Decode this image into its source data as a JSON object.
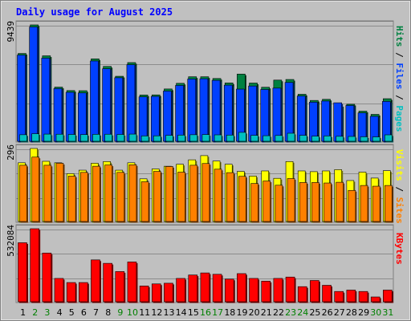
{
  "chart_data": [
    {
      "type": "bar",
      "title": "Daily usage for August 2025",
      "categories": [
        "1",
        "2",
        "3",
        "4",
        "5",
        "6",
        "7",
        "8",
        "9",
        "10",
        "11",
        "12",
        "13",
        "14",
        "15",
        "16",
        "17",
        "18",
        "19",
        "20",
        "21",
        "22",
        "23",
        "24",
        "25",
        "26",
        "27",
        "28",
        "29",
        "30",
        "31"
      ],
      "weekend_days": [
        "2",
        "3",
        "9",
        "10",
        "16",
        "17",
        "23",
        "24",
        "30",
        "31"
      ],
      "panels": [
        {
          "id": "top",
          "axis_label": "9439",
          "ymax": 9439,
          "legend": [
            "Pages",
            "Files",
            "Hits"
          ],
          "legend_colors": [
            "#00c0c0",
            "#0040ff",
            "#008040"
          ],
          "series": [
            {
              "name": "Hits",
              "color": "#008040",
              "values": [
                7120,
                9439,
                6930,
                4390,
                4110,
                4100,
                6680,
                6070,
                5270,
                6380,
                3750,
                3760,
                4240,
                4700,
                5230,
                5230,
                5090,
                4730,
                5450,
                4720,
                4380,
                4960,
                5010,
                3810,
                3310,
                3400,
                2900,
                3000,
                2440,
                2180,
                3450
              ]
            },
            {
              "name": "Files",
              "color": "#0040ff",
              "values": [
                6990,
                9270,
                6740,
                4270,
                3970,
                3920,
                6510,
                5880,
                5150,
                6210,
                3600,
                3640,
                4070,
                4530,
                5050,
                5070,
                4940,
                4550,
                4230,
                4480,
                4200,
                4310,
                4770,
                3670,
                3170,
                3260,
                3120,
                2900,
                2300,
                2020,
                3230
              ]
            },
            {
              "name": "Pages",
              "color": "#00c0c0",
              "values": [
                530,
                610,
                580,
                570,
                550,
                540,
                560,
                570,
                550,
                580,
                430,
                440,
                480,
                500,
                530,
                540,
                520,
                500,
                720,
                480,
                450,
                470,
                650,
                480,
                410,
                430,
                400,
                390,
                360,
                350,
                520
              ]
            }
          ]
        },
        {
          "id": "middle",
          "axis_label": "296",
          "ymax": 296,
          "legend": [
            "Sites",
            "Visits"
          ],
          "legend_colors": [
            "#ff8000",
            "#ffff00"
          ],
          "series": [
            {
              "name": "Visits",
              "color": "#ffff00",
              "values": [
                238,
                296,
                244,
                238,
                194,
                208,
                236,
                243,
                208,
                238,
                173,
                213,
                224,
                232,
                250,
                267,
                245,
                232,
                203,
                184,
                205,
                175,
                243,
                205,
                202,
                205,
                210,
                166,
                200,
                176,
                206
              ]
            },
            {
              "name": "Sites",
              "color": "#ff8000",
              "values": [
                228,
                261,
                228,
                236,
                184,
                199,
                224,
                229,
                199,
                230,
                161,
                203,
                223,
                200,
                228,
                235,
                212,
                198,
                183,
                154,
                164,
                147,
                174,
                158,
                158,
                156,
                159,
                126,
                146,
                143,
                146
              ]
            }
          ]
        },
        {
          "id": "bottom",
          "axis_label": "532084",
          "ymax": 532084,
          "legend": [
            "KBytes"
          ],
          "legend_colors": [
            "#ff0000"
          ],
          "series": [
            {
              "name": "KBytes",
              "color": "#ff0000",
              "values": [
                430000,
                532084,
                355000,
                170000,
                140000,
                140000,
                305000,
                280000,
                220000,
                290000,
                115000,
                130000,
                135000,
                170000,
                195000,
                210000,
                200000,
                165000,
                205000,
                170000,
                150000,
                170000,
                180000,
                110000,
                155000,
                120000,
                75000,
                85000,
                75000,
                35000,
                85000
              ]
            }
          ]
        }
      ]
    }
  ]
}
